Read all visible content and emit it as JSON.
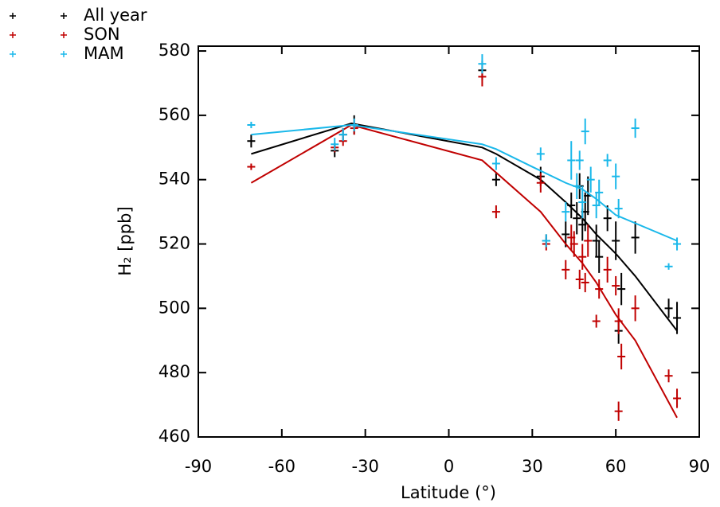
{
  "chart_data": {
    "type": "scatter",
    "xlabel": "Latitude (°)",
    "ylabel": "H₂ [ppb]",
    "xlim": [
      -90,
      90
    ],
    "ylim": [
      460,
      581.5
    ],
    "xticks": [
      -90,
      -60,
      -30,
      0,
      30,
      60,
      90
    ],
    "yticks": [
      460,
      480,
      500,
      520,
      540,
      560,
      580
    ],
    "legend": "outside-top-left",
    "series": [
      {
        "name": "All year",
        "color": "#000000",
        "line_x": [
          -71,
          -35,
          12,
          17,
          33,
          42,
          48,
          53,
          60,
          67,
          82
        ],
        "line_values": [
          548,
          557.5,
          550,
          548,
          540,
          533,
          528,
          523,
          517,
          510,
          493
        ],
        "x": [
          -71,
          -41,
          -38,
          -34,
          12,
          17,
          33,
          35,
          42,
          44,
          46,
          47,
          48,
          49,
          50,
          53,
          54,
          57,
          60,
          61,
          62,
          67,
          79,
          82
        ],
        "values": [
          552,
          549,
          554,
          557,
          574,
          540,
          541,
          521,
          523,
          532,
          528,
          538,
          526,
          530,
          535,
          521,
          516,
          528,
          521,
          493,
          506,
          522,
          500,
          497
        ],
        "errors": [
          2,
          2,
          2,
          3,
          3,
          2,
          3,
          2,
          4,
          4,
          5,
          4,
          5,
          6,
          6,
          5,
          5,
          4,
          6,
          4,
          5,
          5,
          3,
          5
        ]
      },
      {
        "name": "SON",
        "color": "#c00000",
        "line_x": [
          -71,
          -35,
          12,
          33,
          42,
          48,
          53,
          60,
          67,
          82
        ],
        "line_values": [
          539,
          557,
          546,
          530,
          520,
          514,
          508,
          498,
          490,
          466
        ],
        "x": [
          -71,
          -41,
          -38,
          -34,
          12,
          17,
          33,
          35,
          42,
          44,
          45,
          47,
          48,
          49,
          50,
          53,
          54,
          57,
          60,
          61,
          61,
          62,
          67,
          79,
          82
        ],
        "values": [
          544,
          550,
          552,
          556,
          572,
          530,
          539,
          520,
          512,
          522,
          520,
          509,
          516,
          508,
          521,
          496,
          506,
          512,
          507,
          496,
          468,
          485,
          500,
          479,
          472
        ],
        "errors": [
          1,
          1.5,
          1.5,
          2,
          3,
          2,
          3,
          2,
          3,
          4,
          4,
          3,
          4,
          3,
          5,
          2,
          3,
          4,
          3,
          4,
          3,
          4,
          4,
          2,
          3
        ]
      },
      {
        "name": "MAM",
        "color": "#1ab8ea",
        "line_x": [
          -71,
          -35,
          12,
          17,
          30,
          42,
          48,
          53,
          60,
          82
        ],
        "line_values": [
          554,
          557,
          551,
          549.5,
          544,
          539,
          537,
          534,
          529,
          521
        ],
        "x": [
          -71,
          -41,
          -38,
          -34,
          12,
          17,
          33,
          35,
          42,
          44,
          46,
          47,
          48,
          49,
          51,
          53,
          54,
          57,
          60,
          61,
          67,
          79,
          82
        ],
        "values": [
          557,
          551,
          554,
          557,
          576,
          545,
          548,
          521,
          530,
          546,
          538,
          546,
          533,
          555,
          540,
          532,
          536,
          546,
          541,
          531,
          556,
          513,
          520
        ],
        "errors": [
          1,
          2,
          2,
          2,
          3,
          2,
          2,
          2,
          3,
          6,
          4,
          3,
          5,
          4,
          4,
          4,
          4,
          2,
          4,
          3,
          3,
          1,
          2
        ]
      }
    ]
  }
}
